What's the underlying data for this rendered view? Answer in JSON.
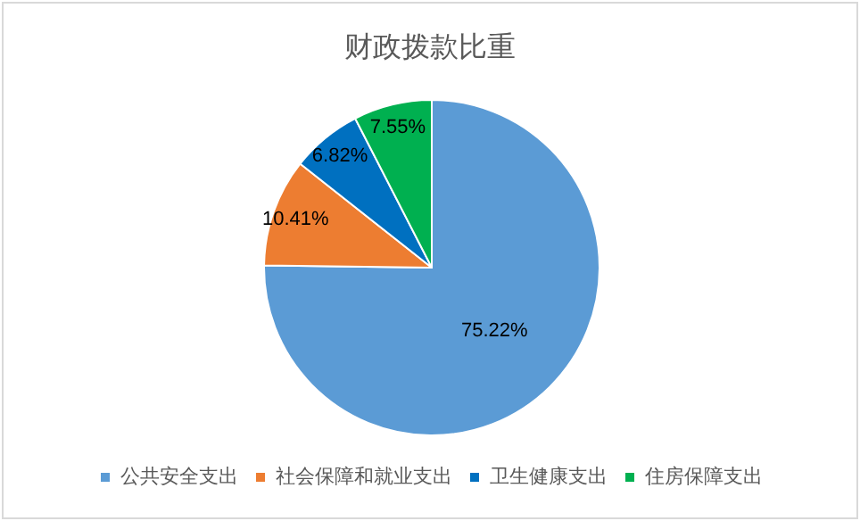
{
  "chart_data": {
    "type": "pie",
    "title": "财政拨款比重",
    "categories": [
      "公共安全支出",
      "社会保障和就业支出",
      "卫生健康支出",
      "住房保障支出"
    ],
    "values": [
      75.22,
      10.41,
      6.82,
      7.55
    ],
    "colors": [
      "#5b9bd5",
      "#ed7d31",
      "#0070c0",
      "#00b050"
    ],
    "value_labels": [
      "75.22%",
      "10.41%",
      "6.82%",
      "7.55%"
    ],
    "legend": "bottom"
  }
}
